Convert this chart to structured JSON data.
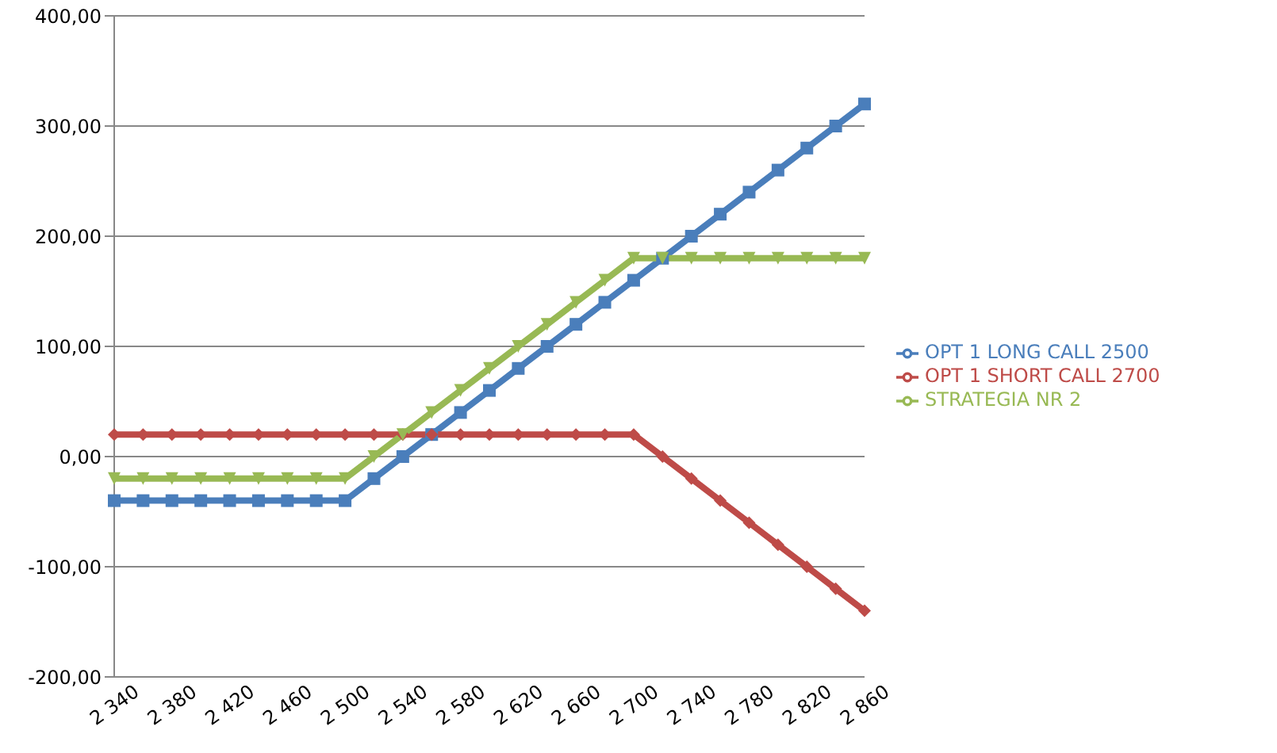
{
  "chart_data": {
    "type": "line",
    "categories": [
      "2 340",
      null,
      "2 380",
      null,
      "2 420",
      null,
      "2 460",
      null,
      "2 500",
      null,
      "2 540",
      null,
      "2 580",
      null,
      "2 620",
      null,
      "2 660",
      null,
      "2 700",
      null,
      "2 740",
      null,
      "2 780",
      null,
      "2 820",
      null,
      "2 860"
    ],
    "series": [
      {
        "name": "OPT 1 LONG CALL 2500",
        "color": "#4a7ebb",
        "marker": "square",
        "values": [
          -40,
          -40,
          -40,
          -40,
          -40,
          -40,
          -40,
          -40,
          -40,
          -20,
          0,
          20,
          40,
          60,
          80,
          100,
          120,
          140,
          160,
          180,
          200,
          220,
          240,
          260,
          280,
          300,
          320
        ]
      },
      {
        "name": "OPT 1  SHORT CALL 2700",
        "color": "#be4b48",
        "marker": "diamond",
        "values": [
          20,
          20,
          20,
          20,
          20,
          20,
          20,
          20,
          20,
          20,
          20,
          20,
          20,
          20,
          20,
          20,
          20,
          20,
          20,
          0,
          -20,
          -40,
          -60,
          -80,
          -100,
          -120,
          -140
        ]
      },
      {
        "name": "STRATEGIA NR 2",
        "color": "#98b954",
        "marker": "triangle",
        "values": [
          -20,
          -20,
          -20,
          -20,
          -20,
          -20,
          -20,
          -20,
          -20,
          0,
          20,
          40,
          60,
          80,
          100,
          120,
          140,
          160,
          180,
          180,
          180,
          180,
          180,
          180,
          180,
          180,
          180
        ]
      }
    ],
    "ylim": [
      -200,
      400
    ],
    "yticks": [
      {
        "value": -200,
        "label": "-200,00"
      },
      {
        "value": -100,
        "label": "-100,00"
      },
      {
        "value": 0,
        "label": "0,00"
      },
      {
        "value": 100,
        "label": "100,00"
      },
      {
        "value": 200,
        "label": "200,00"
      },
      {
        "value": 300,
        "label": "300,00"
      },
      {
        "value": 400,
        "label": "400,00"
      }
    ],
    "grid": "y",
    "legend": "right",
    "line_style": "solid"
  }
}
